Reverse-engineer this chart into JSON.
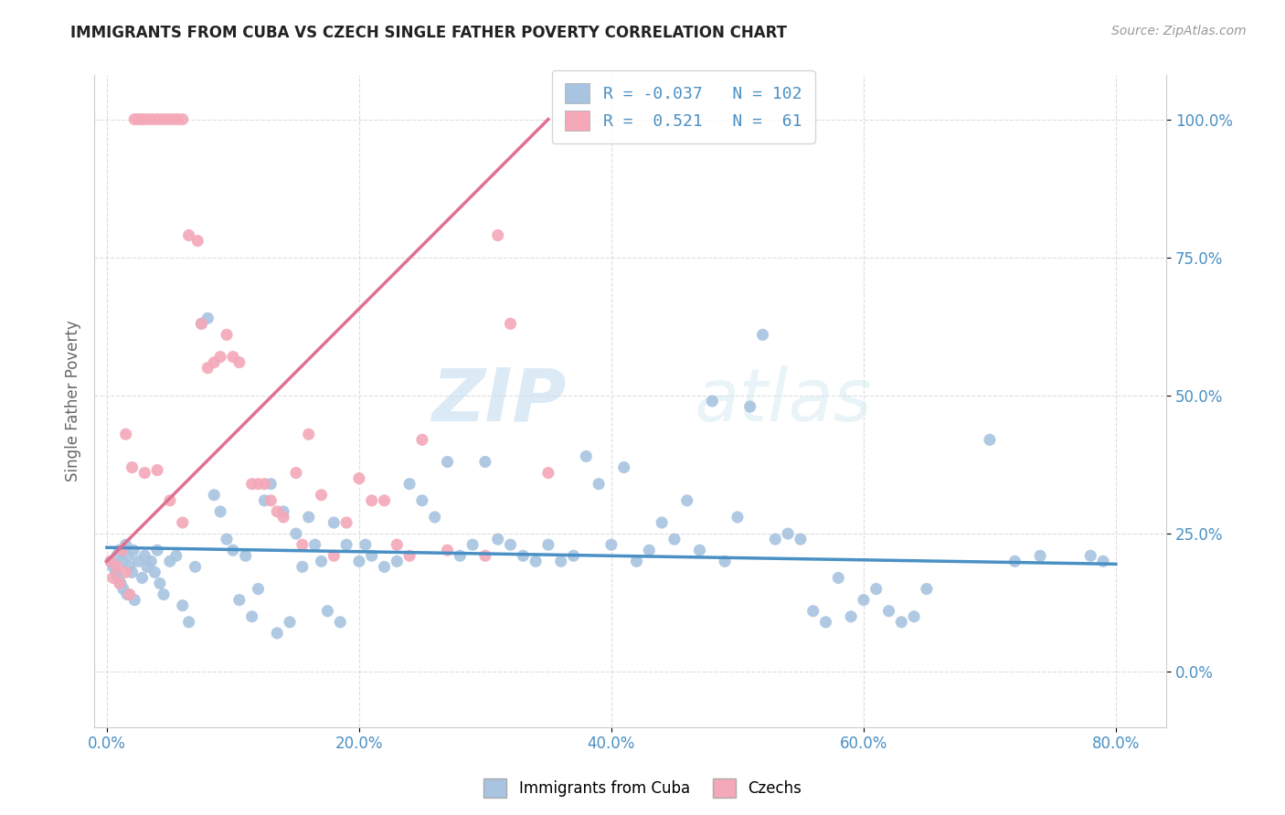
{
  "title": "IMMIGRANTS FROM CUBA VS CZECH SINGLE FATHER POVERTY CORRELATION CHART",
  "source": "Source: ZipAtlas.com",
  "xlabel_ticks": [
    "0.0%",
    "20.0%",
    "40.0%",
    "60.0%",
    "80.0%"
  ],
  "ylabel_ticks_right": [
    "100.0%",
    "75.0%",
    "50.0%",
    "25.0%",
    "0.0%"
  ],
  "xlabel_tick_vals": [
    0,
    20,
    40,
    60,
    80
  ],
  "ylabel_tick_vals": [
    0,
    25,
    50,
    75,
    100
  ],
  "xlim": [
    -1,
    84
  ],
  "ylim": [
    -10,
    108
  ],
  "ylabel": "Single Father Poverty",
  "watermark_zip": "ZIP",
  "watermark_atlas": "atlas",
  "legend_label1": "Immigrants from Cuba",
  "legend_label2": "Czechs",
  "R1": -0.037,
  "N1": 102,
  "R2": 0.521,
  "N2": 61,
  "color_blue": "#a8c4e0",
  "color_pink": "#f4a8b8",
  "color_blue_line": "#4a90c4",
  "color_pink_line": "#e07090",
  "color_blue_text": "#4a90c4",
  "blue_scatter": [
    [
      0.3,
      20.0
    ],
    [
      0.5,
      19.0
    ],
    [
      0.7,
      18.0
    ],
    [
      0.8,
      21.0
    ],
    [
      0.9,
      17.0
    ],
    [
      1.0,
      22.0
    ],
    [
      1.1,
      16.0
    ],
    [
      1.2,
      20.0
    ],
    [
      1.3,
      15.0
    ],
    [
      1.5,
      23.0
    ],
    [
      1.6,
      14.0
    ],
    [
      1.7,
      21.0
    ],
    [
      1.8,
      19.0
    ],
    [
      2.0,
      18.0
    ],
    [
      2.1,
      22.0
    ],
    [
      2.2,
      13.0
    ],
    [
      2.5,
      20.0
    ],
    [
      2.8,
      17.0
    ],
    [
      3.0,
      21.0
    ],
    [
      3.2,
      19.0
    ],
    [
      3.5,
      20.0
    ],
    [
      3.8,
      18.0
    ],
    [
      4.0,
      22.0
    ],
    [
      4.2,
      16.0
    ],
    [
      4.5,
      14.0
    ],
    [
      5.0,
      20.0
    ],
    [
      5.5,
      21.0
    ],
    [
      6.0,
      12.0
    ],
    [
      6.5,
      9.0
    ],
    [
      7.0,
      19.0
    ],
    [
      7.5,
      63.0
    ],
    [
      8.0,
      64.0
    ],
    [
      8.5,
      32.0
    ],
    [
      9.0,
      29.0
    ],
    [
      9.5,
      24.0
    ],
    [
      10.0,
      22.0
    ],
    [
      10.5,
      13.0
    ],
    [
      11.0,
      21.0
    ],
    [
      11.5,
      10.0
    ],
    [
      12.0,
      15.0
    ],
    [
      12.5,
      31.0
    ],
    [
      13.0,
      34.0
    ],
    [
      13.5,
      7.0
    ],
    [
      14.0,
      29.0
    ],
    [
      14.5,
      9.0
    ],
    [
      15.0,
      25.0
    ],
    [
      15.5,
      19.0
    ],
    [
      16.0,
      28.0
    ],
    [
      16.5,
      23.0
    ],
    [
      17.0,
      20.0
    ],
    [
      17.5,
      11.0
    ],
    [
      18.0,
      27.0
    ],
    [
      18.5,
      9.0
    ],
    [
      19.0,
      23.0
    ],
    [
      20.0,
      20.0
    ],
    [
      20.5,
      23.0
    ],
    [
      21.0,
      21.0
    ],
    [
      22.0,
      19.0
    ],
    [
      23.0,
      20.0
    ],
    [
      24.0,
      34.0
    ],
    [
      25.0,
      31.0
    ],
    [
      26.0,
      28.0
    ],
    [
      27.0,
      38.0
    ],
    [
      28.0,
      21.0
    ],
    [
      29.0,
      23.0
    ],
    [
      30.0,
      38.0
    ],
    [
      31.0,
      24.0
    ],
    [
      32.0,
      23.0
    ],
    [
      33.0,
      21.0
    ],
    [
      34.0,
      20.0
    ],
    [
      35.0,
      23.0
    ],
    [
      36.0,
      20.0
    ],
    [
      37.0,
      21.0
    ],
    [
      38.0,
      39.0
    ],
    [
      39.0,
      34.0
    ],
    [
      40.0,
      23.0
    ],
    [
      41.0,
      37.0
    ],
    [
      42.0,
      20.0
    ],
    [
      43.0,
      22.0
    ],
    [
      44.0,
      27.0
    ],
    [
      45.0,
      24.0
    ],
    [
      46.0,
      31.0
    ],
    [
      47.0,
      22.0
    ],
    [
      48.0,
      49.0
    ],
    [
      49.0,
      20.0
    ],
    [
      50.0,
      28.0
    ],
    [
      51.0,
      48.0
    ],
    [
      52.0,
      61.0
    ],
    [
      53.0,
      24.0
    ],
    [
      54.0,
      25.0
    ],
    [
      55.0,
      24.0
    ],
    [
      56.0,
      11.0
    ],
    [
      57.0,
      9.0
    ],
    [
      58.0,
      17.0
    ],
    [
      59.0,
      10.0
    ],
    [
      60.0,
      13.0
    ],
    [
      61.0,
      15.0
    ],
    [
      62.0,
      11.0
    ],
    [
      63.0,
      9.0
    ],
    [
      64.0,
      10.0
    ],
    [
      65.0,
      15.0
    ],
    [
      70.0,
      42.0
    ],
    [
      72.0,
      20.0
    ],
    [
      74.0,
      21.0
    ],
    [
      78.0,
      21.0
    ],
    [
      79.0,
      20.0
    ]
  ],
  "pink_scatter": [
    [
      0.3,
      20.0
    ],
    [
      0.5,
      17.0
    ],
    [
      0.8,
      19.0
    ],
    [
      1.0,
      16.0
    ],
    [
      1.2,
      22.0
    ],
    [
      1.5,
      18.0
    ],
    [
      1.8,
      14.0
    ],
    [
      2.2,
      100.0
    ],
    [
      2.5,
      100.0
    ],
    [
      2.8,
      100.0
    ],
    [
      3.2,
      100.0
    ],
    [
      3.6,
      100.0
    ],
    [
      4.0,
      100.0
    ],
    [
      4.4,
      100.0
    ],
    [
      4.8,
      100.0
    ],
    [
      5.2,
      100.0
    ],
    [
      5.6,
      100.0
    ],
    [
      6.0,
      100.0
    ],
    [
      6.5,
      79.0
    ],
    [
      7.2,
      78.0
    ],
    [
      1.5,
      43.0
    ],
    [
      2.0,
      37.0
    ],
    [
      3.0,
      36.0
    ],
    [
      4.0,
      36.5
    ],
    [
      5.0,
      31.0
    ],
    [
      6.0,
      27.0
    ],
    [
      7.5,
      63.0
    ],
    [
      8.0,
      55.0
    ],
    [
      8.5,
      56.0
    ],
    [
      9.0,
      57.0
    ],
    [
      9.5,
      61.0
    ],
    [
      10.0,
      57.0
    ],
    [
      10.5,
      56.0
    ],
    [
      11.5,
      34.0
    ],
    [
      12.0,
      34.0
    ],
    [
      12.5,
      34.0
    ],
    [
      13.0,
      31.0
    ],
    [
      13.5,
      29.0
    ],
    [
      14.0,
      28.0
    ],
    [
      15.0,
      36.0
    ],
    [
      15.5,
      23.0
    ],
    [
      16.0,
      43.0
    ],
    [
      17.0,
      32.0
    ],
    [
      18.0,
      21.0
    ],
    [
      19.0,
      27.0
    ],
    [
      20.0,
      35.0
    ],
    [
      21.0,
      31.0
    ],
    [
      22.0,
      31.0
    ],
    [
      23.0,
      23.0
    ],
    [
      24.0,
      21.0
    ],
    [
      25.0,
      42.0
    ],
    [
      27.0,
      22.0
    ],
    [
      30.0,
      21.0
    ],
    [
      31.0,
      79.0
    ],
    [
      32.0,
      63.0
    ],
    [
      35.0,
      36.0
    ]
  ],
  "blue_line_x": [
    0,
    80
  ],
  "blue_line_y": [
    22.5,
    19.5
  ],
  "pink_line_x": [
    0,
    35
  ],
  "pink_line_y": [
    20.0,
    100.0
  ]
}
